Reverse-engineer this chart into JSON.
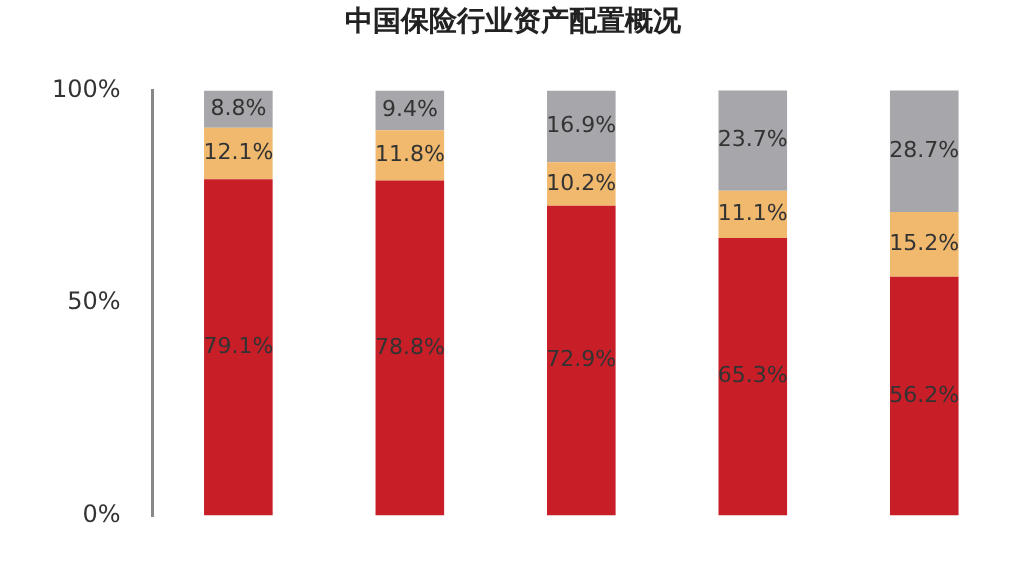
{
  "chart_data": {
    "type": "bar",
    "title": "中国保险行业资产配置概况",
    "categories": [
      null,
      null,
      null,
      null,
      null
    ],
    "stacked": true,
    "grid": false,
    "legend": false,
    "ylim": [
      0,
      100
    ],
    "yticks": [
      {
        "value": 0,
        "label": "0%"
      },
      {
        "value": 50,
        "label": "50%"
      },
      {
        "value": 100,
        "label": "100%"
      }
    ],
    "tick_labels": "y",
    "series": [
      {
        "color": "#c81e28",
        "values": [
          79.1,
          78.8,
          72.9,
          65.3,
          56.2
        ],
        "value_labels": [
          "79.1%",
          "78.8%",
          "72.9%",
          "65.3%",
          "56.2%"
        ]
      },
      {
        "color": "#f0b96e",
        "values": [
          12.1,
          11.8,
          10.2,
          11.1,
          15.2
        ],
        "value_labels": [
          "12.1%",
          "11.8%",
          "10.2%",
          "11.1%",
          "15.2%"
        ]
      },
      {
        "color": "#a6a6ab",
        "values": [
          8.8,
          9.4,
          16.9,
          23.7,
          28.7
        ],
        "value_labels": [
          "8.8%",
          "9.4%",
          "16.9%",
          "23.7%",
          "28.7%"
        ]
      }
    ]
  }
}
